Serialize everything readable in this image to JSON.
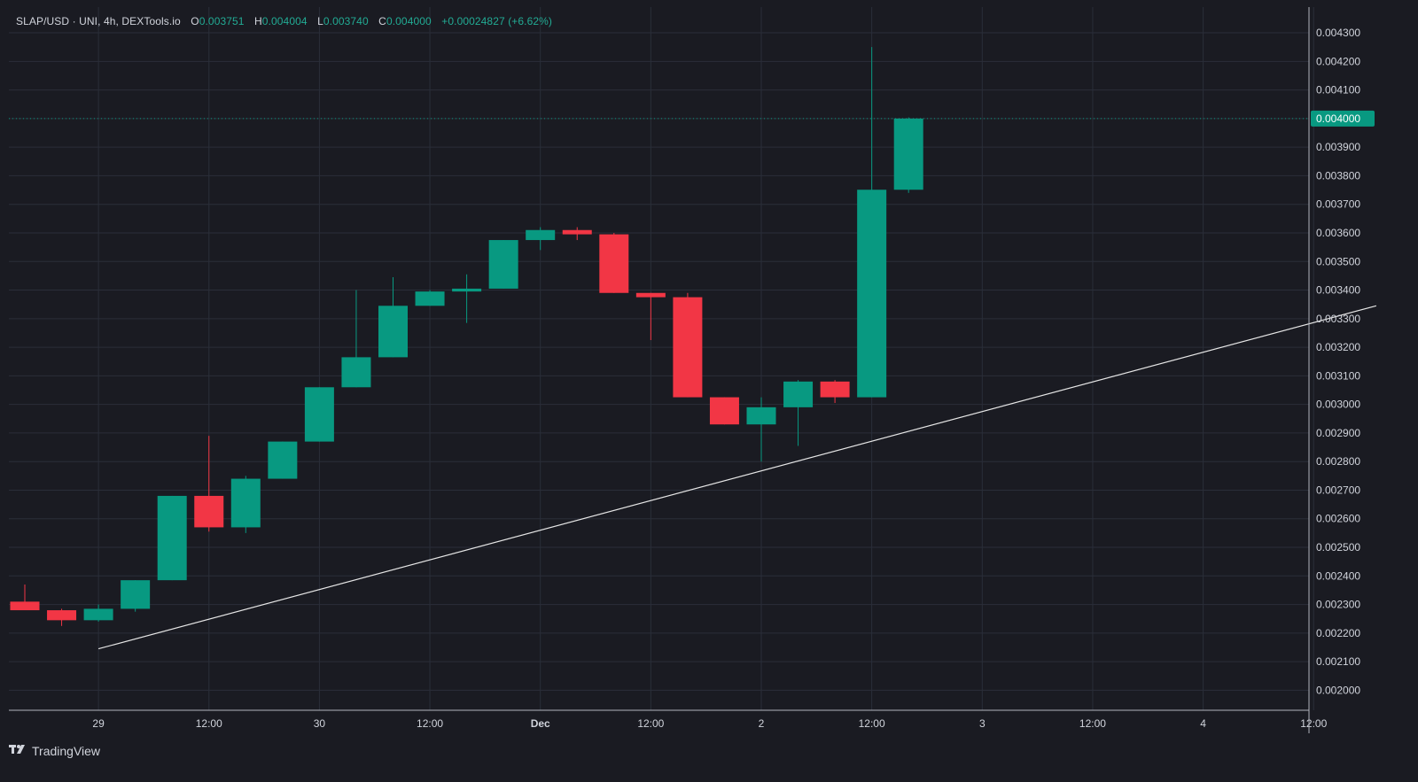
{
  "legend": {
    "symbol": "SLAP/USD · UNI, 4h, DEXTools.io",
    "open_label": "O",
    "open_value": "0.003751",
    "high_label": "H",
    "high_value": "0.004004",
    "low_label": "L",
    "low_value": "0.003740",
    "close_label": "C",
    "close_value": "0.004000",
    "change": "+0.00024827 (+6.62%)"
  },
  "branding": {
    "name": "TradingView",
    "icon": "tradingview-logo-icon"
  },
  "colors": {
    "background": "#1a1b22",
    "grid": "#2a2e39",
    "up": "#089981",
    "down": "#f23645",
    "trendline": "#e6e6e6",
    "text": "#d1d4dc",
    "price_tag": "#089981"
  },
  "chart_data": {
    "type": "candlestick",
    "title": "SLAP/USD · UNI, 4h, DEXTools.io",
    "interval": "4h",
    "y_axis_position": "right",
    "ylim": [
      0.00193,
      0.00439
    ],
    "grid": true,
    "y_ticks": [
      "0.002000",
      "0.002100",
      "0.002200",
      "0.002300",
      "0.002400",
      "0.002500",
      "0.002600",
      "0.002700",
      "0.002800",
      "0.002900",
      "0.003000",
      "0.003100",
      "0.003200",
      "0.003300",
      "0.003400",
      "0.003500",
      "0.003600",
      "0.003700",
      "0.003800",
      "0.003900",
      "0.004000",
      "0.004100",
      "0.004200",
      "0.004300"
    ],
    "x_ticks": [
      {
        "label": "29",
        "index": 2
      },
      {
        "label": "12:00",
        "index": 5
      },
      {
        "label": "30",
        "index": 8
      },
      {
        "label": "12:00",
        "index": 11
      },
      {
        "label": "Dec",
        "index": 14
      },
      {
        "label": "12:00",
        "index": 17
      },
      {
        "label": "2",
        "index": 20
      },
      {
        "label": "12:00",
        "index": 23
      },
      {
        "label": "3",
        "index": 26
      },
      {
        "label": "12:00",
        "index": 29
      },
      {
        "label": "4",
        "index": 32
      },
      {
        "label": "12:00",
        "index": 35
      }
    ],
    "candles": [
      {
        "o": 0.00231,
        "h": 0.00237,
        "l": 0.00228,
        "c": 0.00228
      },
      {
        "o": 0.00228,
        "h": 0.002285,
        "l": 0.002225,
        "c": 0.002245
      },
      {
        "o": 0.002245,
        "h": 0.0023,
        "l": 0.00224,
        "c": 0.002285
      },
      {
        "o": 0.002285,
        "h": 0.002385,
        "l": 0.002275,
        "c": 0.002385
      },
      {
        "o": 0.002385,
        "h": 0.00268,
        "l": 0.002385,
        "c": 0.00268
      },
      {
        "o": 0.00268,
        "h": 0.00289,
        "l": 0.002555,
        "c": 0.00257
      },
      {
        "o": 0.00257,
        "h": 0.00275,
        "l": 0.00255,
        "c": 0.00274
      },
      {
        "o": 0.00274,
        "h": 0.00287,
        "l": 0.00274,
        "c": 0.00287
      },
      {
        "o": 0.00287,
        "h": 0.00306,
        "l": 0.00287,
        "c": 0.00306
      },
      {
        "o": 0.00306,
        "h": 0.0034,
        "l": 0.00306,
        "c": 0.003165
      },
      {
        "o": 0.003165,
        "h": 0.003445,
        "l": 0.003165,
        "c": 0.003345
      },
      {
        "o": 0.003345,
        "h": 0.0034,
        "l": 0.003345,
        "c": 0.003395
      },
      {
        "o": 0.003395,
        "h": 0.003455,
        "l": 0.003285,
        "c": 0.003405
      },
      {
        "o": 0.003405,
        "h": 0.003575,
        "l": 0.003405,
        "c": 0.003575
      },
      {
        "o": 0.003575,
        "h": 0.00362,
        "l": 0.00354,
        "c": 0.00361
      },
      {
        "o": 0.00361,
        "h": 0.00362,
        "l": 0.003575,
        "c": 0.003595
      },
      {
        "o": 0.003595,
        "h": 0.0036,
        "l": 0.00339,
        "c": 0.00339
      },
      {
        "o": 0.00339,
        "h": 0.00339,
        "l": 0.003225,
        "c": 0.003375
      },
      {
        "o": 0.003375,
        "h": 0.00339,
        "l": 0.003025,
        "c": 0.003025
      },
      {
        "o": 0.003025,
        "h": 0.003025,
        "l": 0.00293,
        "c": 0.00293
      },
      {
        "o": 0.00293,
        "h": 0.003025,
        "l": 0.0028,
        "c": 0.00299
      },
      {
        "o": 0.00299,
        "h": 0.003085,
        "l": 0.002855,
        "c": 0.00308
      },
      {
        "o": 0.00308,
        "h": 0.003085,
        "l": 0.003005,
        "c": 0.003025
      },
      {
        "o": 0.003025,
        "h": 0.00425,
        "l": 0.003025,
        "c": 0.003751
      },
      {
        "o": 0.003751,
        "h": 0.004004,
        "l": 0.00374,
        "c": 0.004
      }
    ],
    "last_price": 0.004,
    "last_price_label": "0.004000",
    "trendline": {
      "start": {
        "index": 2,
        "price": 0.002145
      },
      "end": {
        "index": 36.7,
        "price": 0.003345
      }
    }
  }
}
